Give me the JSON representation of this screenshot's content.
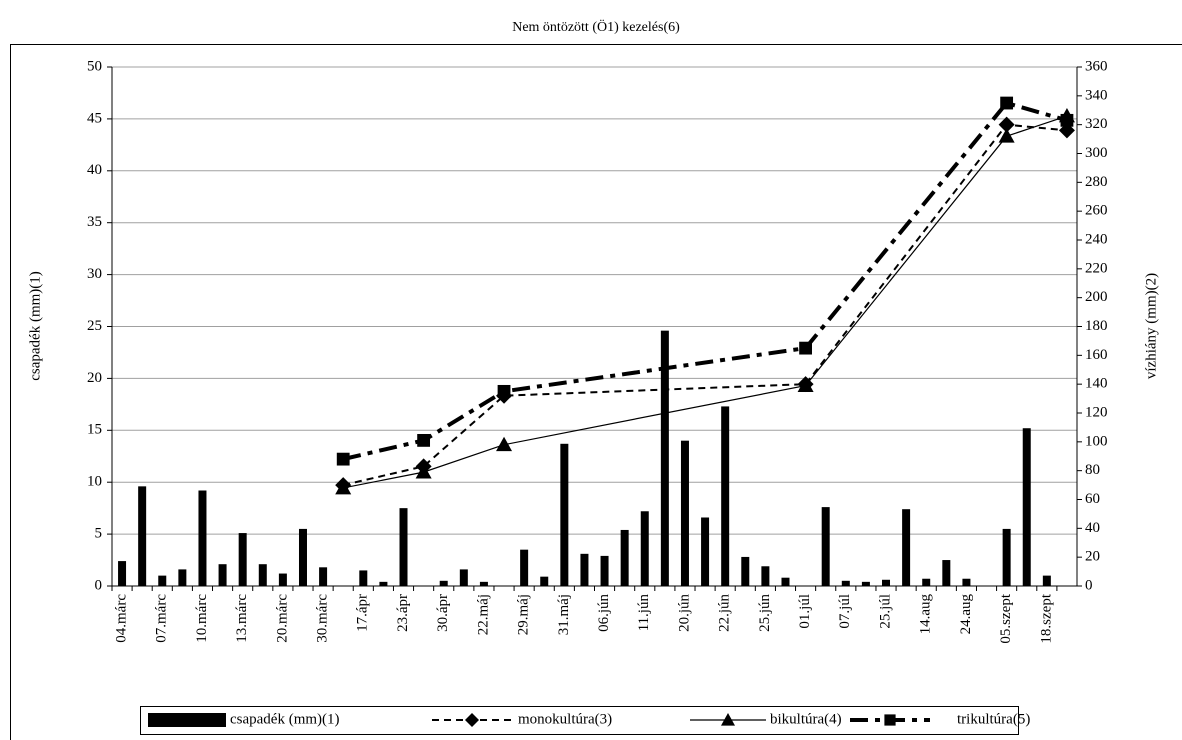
{
  "chart_data": {
    "type": "combo",
    "title": "Nem öntözött (Ö1) kezelés(6)",
    "y_label": "csapadék (mm)(1)",
    "y2_label": "vízhiány (mm)(2)",
    "categories": [
      "04.márc",
      null,
      "07.márc",
      null,
      "10.márc",
      null,
      "13.márc",
      null,
      "20.márc",
      null,
      "30.márc",
      null,
      "17.ápr",
      null,
      "23.ápr",
      null,
      "30.ápr",
      null,
      "22.máj",
      null,
      "29.máj",
      null,
      "31.máj",
      null,
      "06.jún",
      null,
      "11.jún",
      null,
      "20.jún",
      null,
      "22.jún",
      null,
      "25.jún",
      null,
      "01.júl",
      null,
      "07.júl",
      null,
      "25.júl",
      null,
      "14.aug",
      null,
      "24.aug",
      null,
      "05.szept",
      null,
      "18.szept",
      null
    ],
    "ylim": [
      0,
      50
    ],
    "yticks": [
      0,
      5,
      10,
      15,
      20,
      25,
      30,
      35,
      40,
      45,
      50
    ],
    "y2lim": [
      0,
      360
    ],
    "y2ticks": [
      0,
      20,
      40,
      60,
      80,
      100,
      120,
      140,
      160,
      180,
      200,
      220,
      240,
      260,
      280,
      300,
      320,
      340,
      360
    ],
    "grid": true,
    "connect_gaps": true,
    "legend": "bottom",
    "series": [
      {
        "name": "csapadék (mm)(1)",
        "type": "bar",
        "color": "#000000",
        "values": [
          2.4,
          9.6,
          1.0,
          1.6,
          9.2,
          2.1,
          5.1,
          2.1,
          1.2,
          5.5,
          1.8,
          0,
          1.5,
          0.4,
          7.5,
          0,
          0.5,
          1.6,
          0.4,
          0,
          3.5,
          0.9,
          13.7,
          3.1,
          2.9,
          5.4,
          7.2,
          24.6,
          14.0,
          6.6,
          17.3,
          2.8,
          1.9,
          0.8,
          0,
          7.6,
          0.5,
          0.4,
          0.6,
          7.4,
          0.7,
          2.5,
          0.7,
          0,
          5.5,
          15.2,
          1.0,
          0
        ]
      },
      {
        "name": "monokultúra(3)",
        "type": "line",
        "axis": "y2",
        "color": "#000000",
        "marker": "diamond",
        "line_style": "dashed",
        "values": [
          null,
          null,
          null,
          null,
          null,
          null,
          null,
          null,
          null,
          null,
          null,
          70,
          null,
          null,
          null,
          83,
          null,
          null,
          null,
          132,
          null,
          null,
          null,
          null,
          null,
          null,
          null,
          null,
          null,
          null,
          null,
          null,
          null,
          null,
          140,
          null,
          null,
          null,
          null,
          null,
          null,
          null,
          null,
          null,
          320,
          null,
          null,
          316
        ]
      },
      {
        "name": "bikultúra(4)",
        "type": "line",
        "axis": "y2",
        "color": "#000000",
        "marker": "triangle",
        "line_style": "solid",
        "values": [
          null,
          null,
          null,
          null,
          null,
          null,
          null,
          null,
          null,
          null,
          null,
          68,
          null,
          null,
          null,
          79,
          null,
          null,
          null,
          98,
          null,
          null,
          null,
          null,
          null,
          null,
          null,
          null,
          null,
          null,
          null,
          null,
          null,
          null,
          139,
          null,
          null,
          null,
          null,
          null,
          null,
          null,
          null,
          null,
          312,
          null,
          null,
          326
        ]
      },
      {
        "name": "trikultúra(5)",
        "type": "line",
        "axis": "y2",
        "color": "#000000",
        "marker": "square",
        "line_style": "dashdot",
        "values": [
          null,
          null,
          null,
          null,
          null,
          null,
          null,
          null,
          null,
          null,
          null,
          88,
          null,
          null,
          null,
          101,
          null,
          null,
          null,
          135,
          null,
          null,
          null,
          null,
          null,
          null,
          null,
          null,
          null,
          null,
          null,
          null,
          null,
          null,
          165,
          null,
          null,
          null,
          null,
          null,
          null,
          null,
          null,
          null,
          335,
          null,
          null,
          323
        ]
      }
    ]
  }
}
